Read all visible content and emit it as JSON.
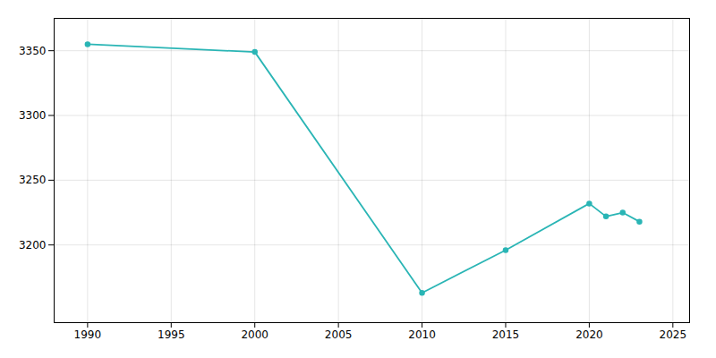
{
  "chart_data": {
    "type": "line",
    "x": [
      1990,
      2000,
      2010,
      2015,
      2020,
      2021,
      2022,
      2023
    ],
    "values": [
      3355,
      3349,
      3163,
      3196,
      3232,
      3222,
      3225,
      3218
    ],
    "color": "#2ab5b5",
    "marker": "circle",
    "xlim": [
      1988,
      2026
    ],
    "ylim": [
      3140,
      3375
    ],
    "xticks": [
      1990,
      1995,
      2000,
      2005,
      2010,
      2015,
      2020,
      2025
    ],
    "yticks": [
      3200,
      3250,
      3300,
      3350
    ],
    "grid": true
  }
}
